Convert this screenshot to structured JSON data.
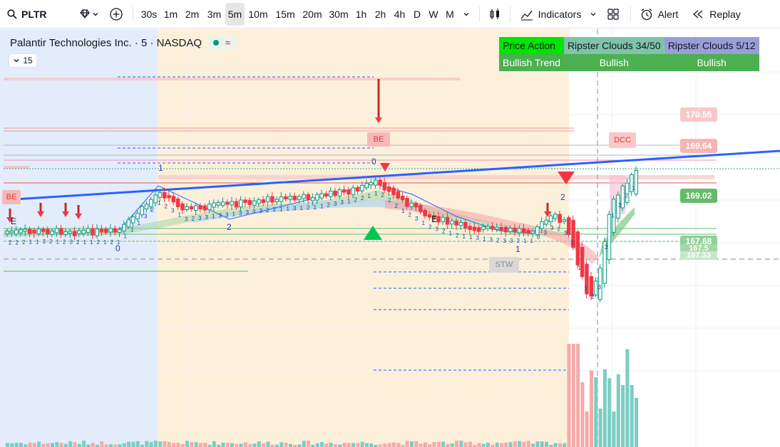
{
  "toolbar": {
    "symbol": "PLTR",
    "intervals": [
      "30s",
      "1m",
      "2m",
      "3m",
      "5m",
      "10m",
      "15m",
      "20m",
      "30m",
      "1h",
      "2h",
      "4h",
      "D",
      "W",
      "M"
    ],
    "active_interval": "5m",
    "indicators_label": "Indicators",
    "alert_label": "Alert",
    "replay_label": "Replay"
  },
  "legend": {
    "title": "Palantir Technologies Inc. · 5 · NASDAQ",
    "collapsed_count": "15"
  },
  "status_table": {
    "headers": [
      "Price Action",
      "Ripster Clouds 34/50",
      "Ripster Clouds 5/12"
    ],
    "values": [
      "Bullish Trend",
      "Bullish",
      "Bullish"
    ],
    "colors": {
      "header_1": "#00e600",
      "header_2": "#7fc4a8",
      "header_3": "#9a9ed8",
      "value_bg": "#4caf50"
    }
  },
  "price_labels": [
    "170.55",
    "169.64",
    "169.02",
    "167.68",
    "167.5",
    "167.33"
  ],
  "chart_marks": {
    "signal_tag_dcc": "DCC",
    "signal_tag_stw": "STW",
    "signal_tag_be": "BE",
    "letter_e": "E",
    "count_labels": [
      "0",
      "1",
      "2",
      "3"
    ]
  },
  "colors": {
    "session_pre": "#e3ecfb",
    "session_regular": "#fdf0db",
    "trend_line": "#2962ff",
    "bull": "#089981",
    "bear": "#f23645",
    "volume_bull": "#7ccdc3",
    "volume_bear": "#f7a9a9"
  }
}
